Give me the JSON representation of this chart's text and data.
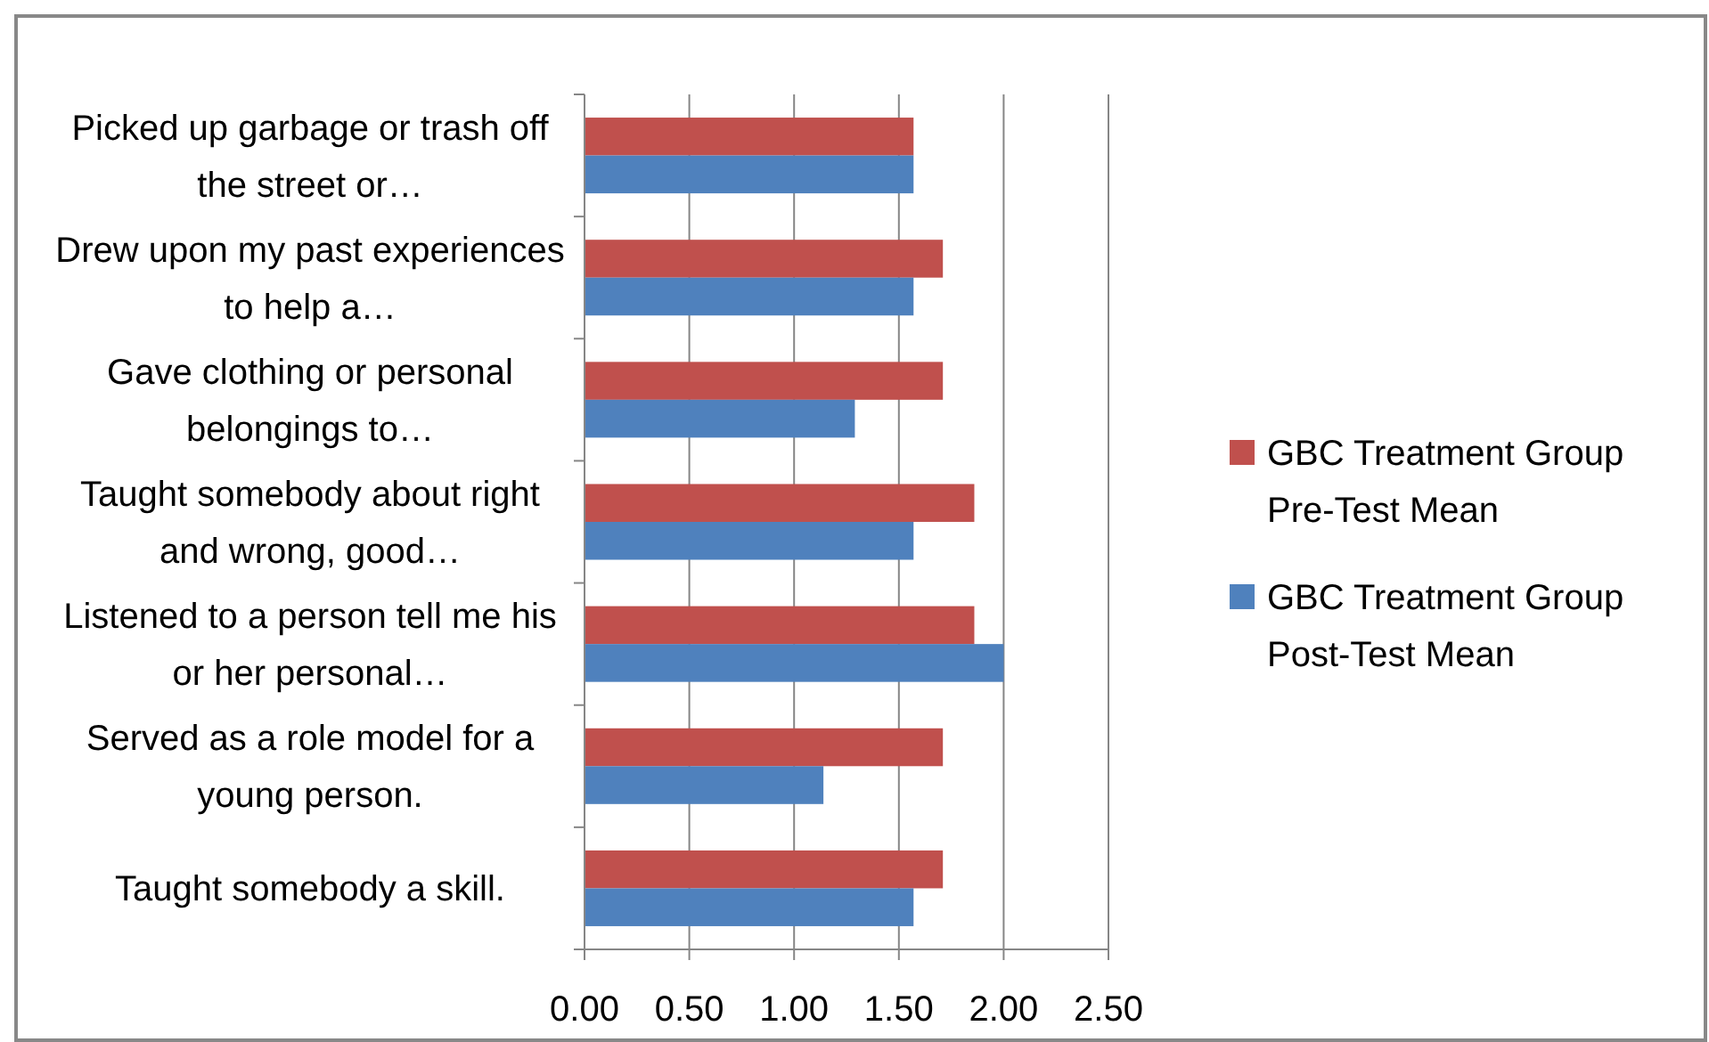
{
  "chart_data": {
    "type": "bar",
    "orientation": "horizontal",
    "categories": [
      "Picked up garbage or trash off the street or…",
      "Drew upon my past experiences to help a…",
      "Gave clothing or personal belongings to…",
      "Taught somebody about right and wrong, good…",
      "Listened to a person tell me his or her personal…",
      "Served as a role model for a young person.",
      "Taught somebody a skill."
    ],
    "series": [
      {
        "name": "GBC Treatment Group Pre-Test Mean",
        "color": "#c0504d",
        "values": [
          1.57,
          1.71,
          1.71,
          1.86,
          1.86,
          1.71,
          1.71
        ]
      },
      {
        "name": "GBC Treatment Group Post-Test Mean",
        "color": "#4f81bd",
        "values": [
          1.57,
          1.57,
          1.29,
          1.57,
          2.0,
          1.14,
          1.57
        ]
      }
    ],
    "xlim": [
      0,
      2.5
    ],
    "xticks": [
      {
        "value": 0,
        "label": "0.00"
      },
      {
        "value": 0.5,
        "label": "0.50"
      },
      {
        "value": 1,
        "label": "1.00"
      },
      {
        "value": 1.5,
        "label": "1.50"
      },
      {
        "value": 2,
        "label": "2.00"
      },
      {
        "value": 2.5,
        "label": "2.50"
      }
    ],
    "grid": "x",
    "legend": "right"
  }
}
